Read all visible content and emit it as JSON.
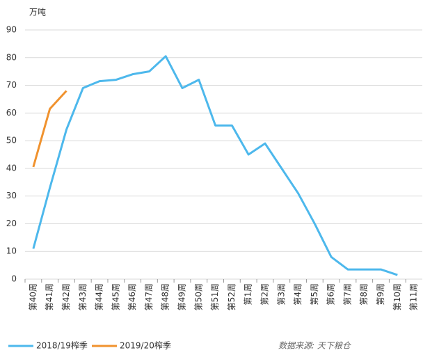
{
  "chart_data": {
    "type": "line",
    "unit_label": "万吨",
    "source": "数据来源: 天下粮仓",
    "categories": [
      "第40周",
      "第41周",
      "第42周",
      "第43周",
      "第44周",
      "第45周",
      "第46周",
      "第47周",
      "第48周",
      "第49周",
      "第50周",
      "第51周",
      "第52周",
      "第1周",
      "第2周",
      "第3周",
      "第4周",
      "第5周",
      "第6周",
      "第7周",
      "第8周",
      "第9周",
      "第10周",
      "第11周"
    ],
    "series": [
      {
        "name": "2018/19榨季",
        "color": "#4db8ec",
        "values": [
          11,
          33,
          54,
          69,
          71.5,
          72,
          74,
          75,
          80.5,
          69,
          72,
          55.5,
          55.5,
          45,
          49,
          40,
          31,
          20,
          8,
          3.5,
          3.5,
          3.5,
          1.5,
          null
        ]
      },
      {
        "name": "2019/20榨季",
        "color": "#f0922e",
        "values": [
          40.5,
          61.5,
          68,
          null,
          null,
          null,
          null,
          null,
          null,
          null,
          null,
          null,
          null,
          null,
          null,
          null,
          null,
          null,
          null,
          null,
          null,
          null,
          null,
          null
        ]
      }
    ],
    "ylim": [
      0,
      90
    ],
    "yticks": [
      0,
      10,
      20,
      30,
      40,
      50,
      60,
      70,
      80,
      90
    ],
    "grid": true
  }
}
